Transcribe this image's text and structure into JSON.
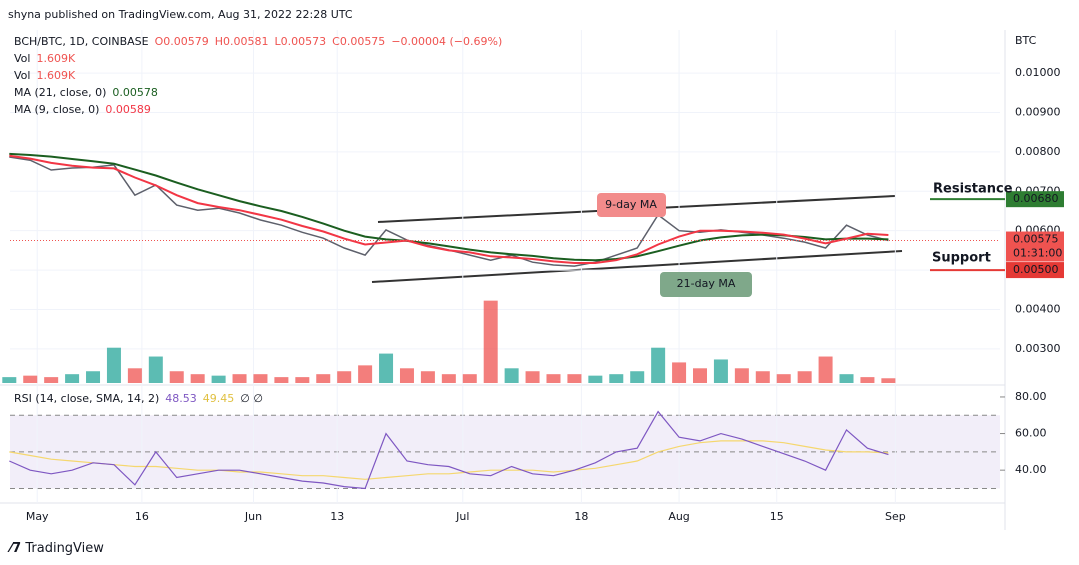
{
  "header": {
    "published": "shyna published on TradingView.com, Aug 31, 2022 22:28 UTC",
    "ohlc": [
      "O0.00579",
      "H0.00581",
      "L0.00573",
      "C0.00575",
      "−0.00004 (−0.69%)"
    ],
    "currency": "BTC",
    "footer": "TradingView"
  },
  "chart_data": {
    "type": "line",
    "x": [
      -4,
      -1,
      2,
      5,
      8,
      11,
      14,
      17,
      20,
      23,
      26,
      29,
      32,
      35,
      38,
      41,
      44,
      47,
      50,
      53,
      56,
      59,
      62,
      65,
      68,
      71,
      74,
      77,
      80,
      83,
      86,
      89,
      92,
      95,
      98,
      101,
      104,
      107,
      110,
      113,
      116,
      119,
      122
    ],
    "xlim": [
      -3.9,
      138
    ],
    "xticks": [
      {
        "value": 0,
        "label": "May"
      },
      {
        "value": 15,
        "label": "16"
      },
      {
        "value": 31,
        "label": "Jun"
      },
      {
        "value": 43,
        "label": "13"
      },
      {
        "value": 61,
        "label": "Jul"
      },
      {
        "value": 78,
        "label": "18"
      },
      {
        "value": 92,
        "label": "Aug"
      },
      {
        "value": 106,
        "label": "15"
      },
      {
        "value": 123,
        "label": "Sep"
      }
    ],
    "ylim": [
      0.00221,
      0.01084
    ],
    "yticks": [
      {
        "value": 0.003,
        "label": "0.00300"
      },
      {
        "value": 0.004,
        "label": "0.00400"
      },
      {
        "value": 0.005,
        "label": "0.00500"
      },
      {
        "value": 0.006,
        "label": "0.00600"
      },
      {
        "value": 0.007,
        "label": "0.00700"
      },
      {
        "value": 0.008,
        "label": "0.00800"
      },
      {
        "value": 0.009,
        "label": "0.00900"
      },
      {
        "value": 0.01,
        "label": "0.01000"
      }
    ],
    "series": [
      {
        "name": "BCH/BTC, 1D, COINBASE",
        "color": "#5d606b",
        "values": [
          0.00787,
          0.00779,
          0.00754,
          0.00759,
          0.00761,
          0.00767,
          0.0069,
          0.00716,
          0.00665,
          0.00652,
          0.00657,
          0.00645,
          0.00627,
          0.00614,
          0.00596,
          0.00581,
          0.00556,
          0.00538,
          0.00602,
          0.00576,
          0.00563,
          0.00551,
          0.00538,
          0.00525,
          0.00538,
          0.0052,
          0.00513,
          0.0051,
          0.0052,
          0.00538,
          0.00556,
          0.0064,
          0.006,
          0.00596,
          0.00602,
          0.00596,
          0.00589,
          0.00581,
          0.00571,
          0.00556,
          0.00614,
          0.00589,
          0.00575
        ]
      },
      {
        "name": "MA (21, close, 0)",
        "color": "#1b5e20",
        "values": [
          0.00795,
          0.00792,
          0.00788,
          0.00782,
          0.00776,
          0.0077,
          0.00755,
          0.0074,
          0.00722,
          0.00705,
          0.0069,
          0.00675,
          0.00662,
          0.0065,
          0.00635,
          0.00618,
          0.006,
          0.00585,
          0.00578,
          0.00574,
          0.00568,
          0.0056,
          0.00552,
          0.00545,
          0.0054,
          0.00536,
          0.0053,
          0.00526,
          0.00525,
          0.00528,
          0.00535,
          0.00548,
          0.00562,
          0.00575,
          0.00583,
          0.00588,
          0.0059,
          0.00588,
          0.00584,
          0.00578,
          0.0058,
          0.0058,
          0.00578
        ]
      },
      {
        "name": "MA (9, close, 0)",
        "color": "#f23645",
        "values": [
          0.0079,
          0.00783,
          0.00772,
          0.00765,
          0.0076,
          0.00758,
          0.00735,
          0.00715,
          0.0069,
          0.0067,
          0.0066,
          0.00652,
          0.0064,
          0.00628,
          0.00612,
          0.00598,
          0.0058,
          0.00565,
          0.0057,
          0.00575,
          0.0056,
          0.0055,
          0.00545,
          0.00535,
          0.00532,
          0.00528,
          0.00522,
          0.00518,
          0.00518,
          0.00525,
          0.0054,
          0.00565,
          0.00585,
          0.006,
          0.006,
          0.00598,
          0.00595,
          0.0059,
          0.0058,
          0.00568,
          0.0058,
          0.00592,
          0.00589
        ]
      }
    ],
    "volume": {
      "name": "Vol",
      "last_label": "1.609K",
      "ylim": [
        0,
        34
      ],
      "up_color": "#26a69a",
      "down_color": "#ef5350",
      "values": [
        2,
        2.5,
        2,
        3,
        4,
        12,
        5,
        9,
        4,
        3,
        2.5,
        3,
        3,
        2,
        2,
        3,
        4,
        6,
        10,
        5,
        4,
        3,
        3,
        28,
        5,
        4,
        3,
        3,
        2.5,
        3,
        4,
        12,
        7,
        5,
        8,
        5,
        4,
        3,
        4,
        9,
        3,
        2,
        1.609
      ]
    },
    "rsi": {
      "name": "RSI (14, close, SMA, 14, 2)",
      "extra": "∅ ∅",
      "color": "#7e57c2",
      "sma_color": "#f5d76e",
      "ylim": [
        23.7,
        83.8
      ],
      "bands": [
        30,
        50,
        70
      ],
      "yticks": [
        {
          "value": 40,
          "label": "40.00"
        },
        {
          "value": 60,
          "label": "60.00"
        },
        {
          "value": 80,
          "label": "80.00"
        }
      ],
      "values": [
        45,
        40,
        38,
        40,
        44,
        43,
        32,
        50,
        36,
        38,
        40,
        40,
        38,
        36,
        34,
        33,
        31,
        30,
        60,
        45,
        43,
        42,
        38,
        37,
        42,
        38,
        37,
        40,
        44,
        50,
        52,
        72,
        58,
        56,
        60,
        57,
        53,
        49,
        45,
        40,
        62,
        52,
        48.53
      ],
      "sma": [
        50,
        48,
        46,
        45,
        44,
        43,
        42,
        42,
        41,
        40,
        40,
        39,
        39,
        38,
        37,
        37,
        36,
        35,
        36,
        37,
        38,
        38,
        39,
        40,
        40,
        40,
        39,
        40,
        41,
        43,
        45,
        50,
        53,
        55,
        56,
        56,
        56,
        55,
        53,
        51,
        50,
        50,
        49.45
      ]
    },
    "annotations": {
      "ma9": "9-day MA",
      "ma21": "21-day MA",
      "resistance": "Resistance",
      "support": "Support",
      "resistance_level": {
        "value": 0.0068,
        "label": "0.00680"
      },
      "support_level": {
        "value": 0.005,
        "label": "0.00500"
      },
      "last_price_label": "0.00575",
      "countdown": "01:31:00"
    }
  }
}
